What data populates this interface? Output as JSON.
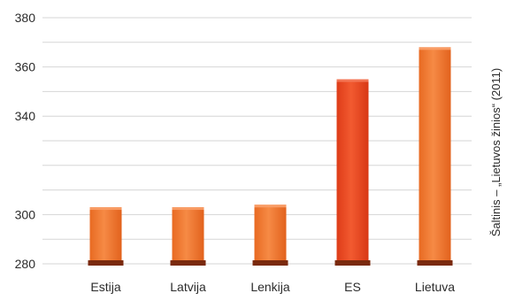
{
  "chart_data": {
    "type": "bar",
    "categories": [
      "Estija",
      "Latvija",
      "Lenkija",
      "ES",
      "Lietuva"
    ],
    "values": [
      303,
      303,
      304,
      355,
      368
    ],
    "highlight_index": 3,
    "ylim": [
      280,
      380
    ],
    "yticks": [
      280,
      300,
      340,
      360,
      380
    ],
    "ytick_labels": [
      "280",
      "300",
      "340",
      "360",
      "380"
    ],
    "grid_y": [
      280,
      290,
      300,
      310,
      320,
      330,
      340,
      350,
      360,
      370,
      380
    ],
    "grid": true,
    "source_note": "Šaltinis – „Lietuvos žinios“ (2011)",
    "colors": {
      "bar": "#f47a2e",
      "bar_highlight": "#ee4a22",
      "bar_base": "#7a2a0e",
      "grid": "#d6d6d6"
    }
  }
}
